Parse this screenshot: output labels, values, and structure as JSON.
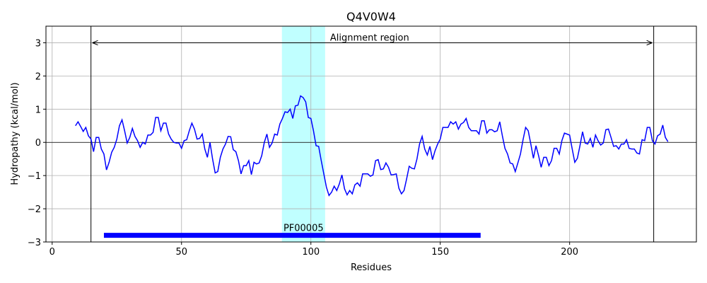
{
  "chart_data": {
    "type": "line",
    "title": "Q4V0W4",
    "x_label": "Residues",
    "y_label": "Hydropathy (kcal/mol)",
    "x": [
      9,
      10,
      11,
      12,
      13,
      14,
      15,
      16,
      17,
      18,
      19,
      20,
      21,
      22,
      23,
      24,
      25,
      26,
      27,
      28,
      29,
      30,
      31,
      32,
      33,
      34,
      35,
      36,
      37,
      38,
      39,
      40,
      41,
      42,
      43,
      44,
      45,
      46,
      47,
      48,
      49,
      50,
      51,
      52,
      53,
      54,
      55,
      56,
      57,
      58,
      59,
      60,
      61,
      62,
      63,
      64,
      65,
      66,
      67,
      68,
      69,
      70,
      71,
      72,
      73,
      74,
      75,
      76,
      77,
      78,
      79,
      80,
      81,
      82,
      83,
      84,
      85,
      86,
      87,
      88,
      89,
      90,
      91,
      92,
      93,
      94,
      95,
      96,
      97,
      98,
      99,
      100,
      101,
      102,
      103,
      104,
      105,
      106,
      107,
      108,
      109,
      110,
      111,
      112,
      113,
      114,
      115,
      116,
      117,
      118,
      119,
      120,
      121,
      122,
      123,
      124,
      125,
      126,
      127,
      128,
      129,
      130,
      131,
      132,
      133,
      134,
      135,
      136,
      137,
      138,
      139,
      140,
      141,
      142,
      143,
      144,
      145,
      146,
      147,
      148,
      149,
      150,
      151,
      152,
      153,
      154,
      155,
      156,
      157,
      158,
      159,
      160,
      161,
      162,
      163,
      164,
      165,
      166,
      167,
      168,
      169,
      170,
      171,
      172,
      173,
      174,
      175,
      176,
      177,
      178,
      179,
      180,
      181,
      182,
      183,
      184,
      185,
      186,
      187,
      188,
      189,
      190,
      191,
      192,
      193,
      194,
      195,
      196,
      197,
      198,
      199,
      200,
      201,
      202,
      203,
      204,
      205,
      206,
      207,
      208,
      209,
      210,
      211,
      212,
      213,
      214,
      215,
      216,
      217,
      218,
      219,
      220,
      221,
      222,
      223,
      224,
      225,
      226,
      227,
      228,
      229,
      230,
      231,
      232,
      233,
      234,
      235,
      236,
      237,
      238
    ],
    "values": [
      0.5,
      0.62,
      0.48,
      0.33,
      0.45,
      0.2,
      0.1,
      -0.28,
      0.15,
      0.15,
      -0.2,
      -0.35,
      -0.83,
      -0.6,
      -0.3,
      -0.15,
      0.1,
      0.5,
      0.68,
      0.35,
      -0.02,
      0.15,
      0.42,
      0.18,
      0.05,
      -0.15,
      0.0,
      -0.05,
      0.22,
      0.22,
      0.3,
      0.75,
      0.75,
      0.35,
      0.58,
      0.58,
      0.25,
      0.1,
      0.0,
      -0.02,
      -0.02,
      -0.18,
      0.05,
      0.08,
      0.35,
      0.58,
      0.4,
      0.1,
      0.12,
      0.25,
      -0.2,
      -0.45,
      0.0,
      -0.5,
      -0.92,
      -0.88,
      -0.45,
      -0.2,
      -0.05,
      0.18,
      0.17,
      -0.22,
      -0.28,
      -0.55,
      -0.95,
      -0.7,
      -0.7,
      -0.55,
      -0.97,
      -0.6,
      -0.65,
      -0.62,
      -0.4,
      0.0,
      0.25,
      -0.15,
      -0.02,
      0.25,
      0.22,
      0.55,
      0.72,
      0.92,
      0.9,
      1.0,
      0.72,
      1.1,
      1.12,
      1.4,
      1.35,
      1.22,
      0.75,
      0.72,
      0.35,
      -0.1,
      -0.12,
      -0.55,
      -0.95,
      -1.35,
      -1.6,
      -1.5,
      -1.32,
      -1.45,
      -1.25,
      -0.98,
      -1.4,
      -1.58,
      -1.45,
      -1.55,
      -1.28,
      -1.22,
      -1.32,
      -0.95,
      -0.95,
      -0.95,
      -1.02,
      -0.98,
      -0.55,
      -0.52,
      -0.82,
      -0.8,
      -0.62,
      -0.75,
      -0.98,
      -0.97,
      -0.95,
      -1.38,
      -1.55,
      -1.45,
      -1.1,
      -0.72,
      -0.78,
      -0.8,
      -0.5,
      -0.05,
      0.18,
      -0.2,
      -0.38,
      -0.12,
      -0.52,
      -0.25,
      -0.05,
      0.1,
      0.45,
      0.45,
      0.45,
      0.62,
      0.55,
      0.62,
      0.4,
      0.55,
      0.6,
      0.72,
      0.45,
      0.35,
      0.35,
      0.35,
      0.25,
      0.65,
      0.65,
      0.28,
      0.38,
      0.38,
      0.32,
      0.35,
      0.62,
      0.2,
      -0.18,
      -0.35,
      -0.62,
      -0.65,
      -0.88,
      -0.62,
      -0.35,
      0.08,
      0.45,
      0.35,
      -0.05,
      -0.48,
      -0.1,
      -0.4,
      -0.75,
      -0.45,
      -0.45,
      -0.7,
      -0.55,
      -0.18,
      -0.18,
      -0.35,
      0.05,
      0.28,
      0.25,
      0.22,
      -0.2,
      -0.6,
      -0.48,
      -0.1,
      0.32,
      -0.02,
      -0.05,
      0.12,
      -0.15,
      0.22,
      0.05,
      -0.08,
      -0.02,
      0.38,
      0.4,
      0.15,
      -0.12,
      -0.1,
      -0.2,
      -0.05,
      -0.05,
      0.08,
      -0.18,
      -0.2,
      -0.2,
      -0.32,
      -0.35,
      0.08,
      0.05,
      0.45,
      0.45,
      0.05,
      -0.05,
      0.2,
      0.25,
      0.52,
      0.15,
      0.02
    ],
    "color": "#0000ff",
    "xlim": [
      -2.4,
      249
    ],
    "ylim": [
      -3,
      3.5
    ],
    "xticks": [
      0,
      50,
      100,
      150,
      200
    ],
    "yticks": [
      {
        "value": -3,
        "label": "−3"
      },
      {
        "value": -2,
        "label": "−2"
      },
      {
        "value": -1,
        "label": "−1"
      },
      0,
      1,
      2,
      3
    ],
    "grid": true,
    "zero_line": true,
    "alignment_region": {
      "label": "Alignment region",
      "start": 15,
      "end": 232.5,
      "arrow_y": 3
    },
    "highlight_span": {
      "start": 88.8,
      "end": 105.5,
      "color": "#c0ffff"
    },
    "domain": {
      "label": "PF00005",
      "start": 20,
      "end": 165.6,
      "y": -2.8,
      "color": "#0000ff"
    }
  }
}
